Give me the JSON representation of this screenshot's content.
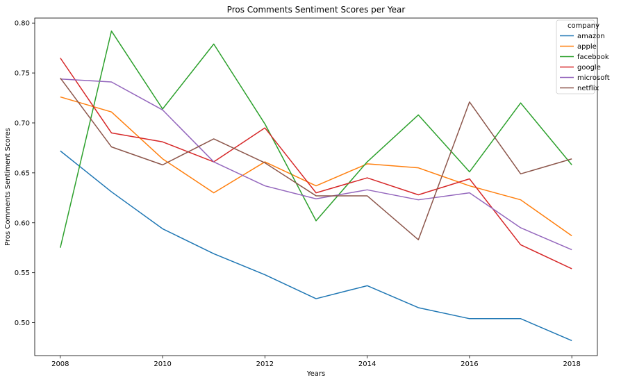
{
  "chart_data": {
    "type": "line",
    "title": "Pros Comments Sentiment Scores per Year",
    "xlabel": "Years",
    "ylabel": "Pros Comments Sentiment Scores",
    "xlim": [
      2007.5,
      2018.5
    ],
    "ylim": [
      0.467,
      0.805
    ],
    "xticks": [
      2008,
      2010,
      2012,
      2014,
      2016,
      2018
    ],
    "yticks": [
      0.5,
      0.55,
      0.6,
      0.65,
      0.7,
      0.75,
      0.8
    ],
    "ytick_labels": [
      "0.50",
      "0.55",
      "0.60",
      "0.65",
      "0.70",
      "0.75",
      "0.80"
    ],
    "grid": false,
    "legend": {
      "title": "company",
      "placement": "top-right"
    },
    "x": [
      2008,
      2009,
      2010,
      2011,
      2012,
      2013,
      2014,
      2015,
      2016,
      2017,
      2018
    ],
    "series": [
      {
        "name": "amazon",
        "color": "#1f77b4",
        "values": [
          0.672,
          0.631,
          0.594,
          0.569,
          0.548,
          0.524,
          0.537,
          0.515,
          0.504,
          0.504,
          0.482
        ]
      },
      {
        "name": "apple",
        "color": "#ff7f0e",
        "values": [
          0.726,
          0.711,
          0.664,
          0.63,
          0.661,
          0.637,
          0.659,
          0.655,
          0.637,
          0.623,
          0.587
        ]
      },
      {
        "name": "facebook",
        "color": "#2ca02c",
        "values": [
          0.575,
          0.792,
          0.714,
          0.779,
          0.699,
          0.602,
          0.661,
          0.708,
          0.651,
          0.72,
          0.658
        ]
      },
      {
        "name": "google",
        "color": "#d62728",
        "values": [
          0.765,
          0.69,
          0.681,
          0.661,
          0.695,
          0.63,
          0.645,
          0.628,
          0.644,
          0.578,
          0.554
        ]
      },
      {
        "name": "microsoft",
        "color": "#9467bd",
        "values": [
          0.744,
          0.741,
          0.713,
          0.661,
          0.637,
          0.624,
          0.633,
          0.623,
          0.63,
          0.595,
          0.573
        ]
      },
      {
        "name": "netflix",
        "color": "#8c564b",
        "values": [
          0.745,
          0.676,
          0.658,
          0.684,
          0.66,
          0.627,
          0.627,
          0.583,
          0.721,
          0.649,
          0.664
        ]
      }
    ]
  }
}
